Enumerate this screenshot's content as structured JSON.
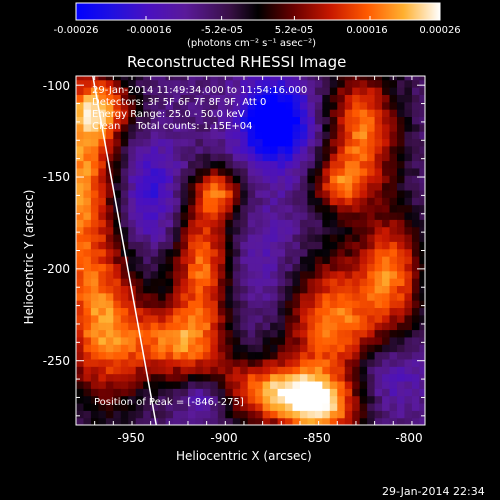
{
  "colors": {
    "background": "#000000",
    "text": "#ffffff",
    "colormap": [
      "#0000ff",
      "#3a0a9e",
      "#5a1a9a",
      "#3b1550",
      "#000000",
      "#6b0000",
      "#c81800",
      "#ff5a00",
      "#ffa020",
      "#ffe060",
      "#ffffff"
    ]
  },
  "chart_data": {
    "type": "heatmap",
    "title": "Reconstructed RHESSI Image",
    "xlabel": "Heliocentric X (arcsec)",
    "ylabel": "Heliocentric Y (arcsec)",
    "xlim": [
      -975,
      -788
    ],
    "ylim": [
      -285,
      -95
    ],
    "x_ticks": [
      -950,
      -900,
      -850,
      -800
    ],
    "y_ticks": [
      -100,
      -150,
      -200,
      -250
    ],
    "colorbar": {
      "range": [
        -0.00026,
        0.00026
      ],
      "ticks": [
        "-0.00026",
        "-0.00016",
        "-5.2e-05",
        "5.2e-05",
        "0.00016",
        "0.00026"
      ],
      "tick_values": [
        -0.00026,
        -0.00016,
        -5.2e-05,
        5.2e-05,
        0.00016,
        0.00026
      ],
      "unit_label": "(photons cm⁻² s⁻¹ asec⁻²)"
    },
    "annotations": [
      "29-Jan-2014 11:49:34.000 to 11:54:16.000",
      "Detectors: 3F 5F 6F 7F 8F 9F, Att 0",
      "Energy Range: 25.0 - 50.0 keV",
      "Clean     Total counts: 1.15E+04"
    ],
    "peak_label": "Position of Peak = [-846,-275]",
    "limb_line": [
      [
        -966,
        -95
      ],
      [
        -932,
        -285
      ]
    ],
    "sources": [
      {
        "x": -972,
        "y": -150,
        "sx": 14,
        "sy": 40,
        "a": 1.0
      },
      {
        "x": -960,
        "y": -232,
        "sx": 16,
        "sy": 30,
        "a": 0.9
      },
      {
        "x": -960,
        "y": -112,
        "sx": 12,
        "sy": 12,
        "a": 0.7
      },
      {
        "x": -907,
        "y": -197,
        "sx": 12,
        "sy": 26,
        "a": 1.0
      },
      {
        "x": -898,
        "y": -158,
        "sx": 10,
        "sy": 10,
        "a": 0.75
      },
      {
        "x": -920,
        "y": -240,
        "sx": 18,
        "sy": 14,
        "a": 0.85
      },
      {
        "x": -875,
        "y": -266,
        "sx": 20,
        "sy": 12,
        "a": 0.9
      },
      {
        "x": -845,
        "y": -275,
        "sx": 16,
        "sy": 12,
        "a": 1.0
      },
      {
        "x": -838,
        "y": -228,
        "sx": 20,
        "sy": 26,
        "a": 1.0
      },
      {
        "x": -805,
        "y": -200,
        "sx": 12,
        "sy": 22,
        "a": 0.8
      },
      {
        "x": -822,
        "y": -125,
        "sx": 14,
        "sy": 26,
        "a": 0.95
      },
      {
        "x": -835,
        "y": -155,
        "sx": 10,
        "sy": 10,
        "a": 0.6
      },
      {
        "x": -868,
        "y": -120,
        "sx": 14,
        "sy": 16,
        "a": -1.0
      },
      {
        "x": -935,
        "y": -160,
        "sx": 14,
        "sy": 22,
        "a": -0.45
      },
      {
        "x": -875,
        "y": -200,
        "sx": 20,
        "sy": 30,
        "a": -0.3
      },
      {
        "x": -905,
        "y": -270,
        "sx": 10,
        "sy": 8,
        "a": -0.5
      },
      {
        "x": -810,
        "y": -258,
        "sx": 14,
        "sy": 14,
        "a": -0.4
      }
    ]
  },
  "footer": {
    "timestamp": "29-Jan-2014 22:34"
  }
}
